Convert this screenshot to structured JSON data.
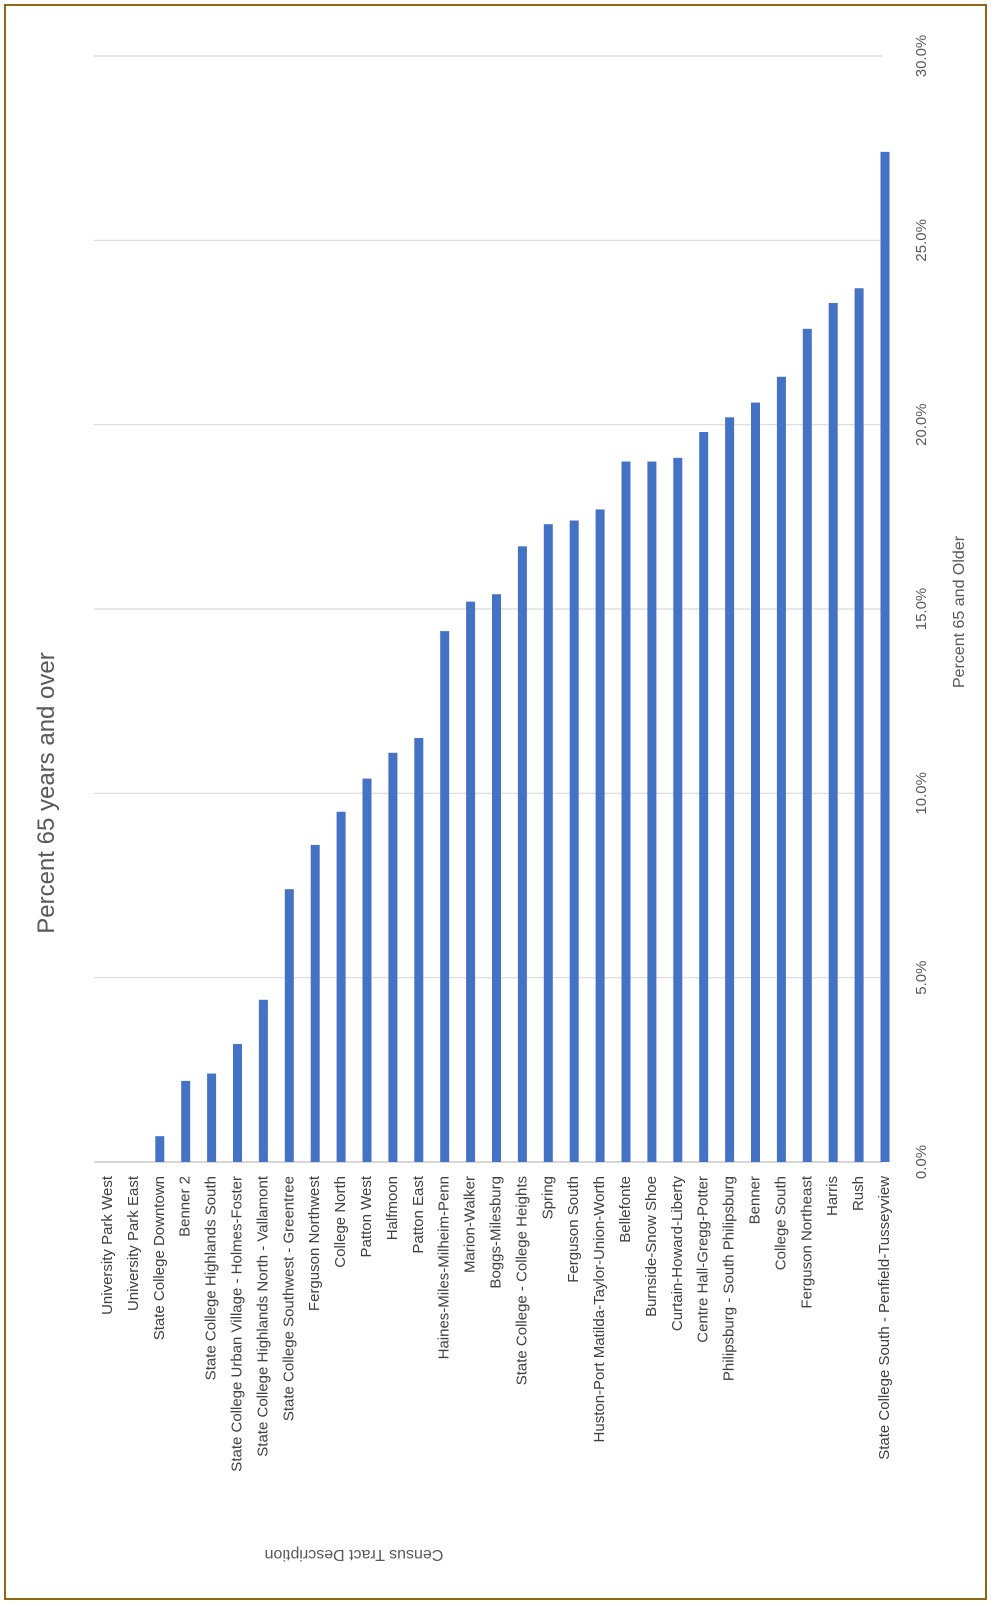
{
  "chart_data": {
    "type": "bar",
    "orientation": "rotated-90",
    "title": "Percent 65 years and over",
    "xlabel": "Census Tract Description",
    "ylabel": "Percent 65 and Older",
    "ylim": [
      0,
      30
    ],
    "y_ticks": [
      "0.0%",
      "5.0%",
      "10.0%",
      "15.0%",
      "20.0%",
      "25.0%",
      "30.0%"
    ],
    "grid": true,
    "bar_color": "#4472C4",
    "categories": [
      "University Park West",
      "University Park East",
      "State College Downtown",
      "Benner 2",
      "State College Highlands South",
      "State College Urban Village - Holmes-Foster",
      "State College Highlands North - Vallamont",
      "State College Southwest - Greentree",
      "Ferguson Northwest",
      "College North",
      "Patton West",
      "Halfmoon",
      "Patton East",
      "Haines-Miles-Milheim-Penn",
      "Marion-Walker",
      "Boggs-Milesburg",
      "State College - College Heights",
      "Spring",
      "Ferguson South",
      "Huston-Port Matilda-Taylor-Union-Worth",
      "Bellefonte",
      "Burnside-Snow Shoe",
      "Curtain-Howard-Liberty",
      "Centre Hall-Gregg-Potter",
      "Philipsburg - South Philipsburg",
      "Benner",
      "College South",
      "Ferguson Northeast",
      "Harris",
      "Rush",
      "State College South - Penfield-Tusseyview"
    ],
    "values": [
      0.0,
      0.0,
      0.7,
      2.2,
      2.4,
      3.2,
      4.4,
      7.4,
      8.6,
      9.5,
      10.4,
      11.1,
      11.5,
      14.4,
      15.2,
      15.4,
      16.7,
      17.3,
      17.4,
      17.7,
      19.0,
      19.0,
      19.1,
      19.8,
      20.2,
      20.6,
      21.3,
      22.6,
      23.3,
      23.7,
      27.4
    ]
  }
}
